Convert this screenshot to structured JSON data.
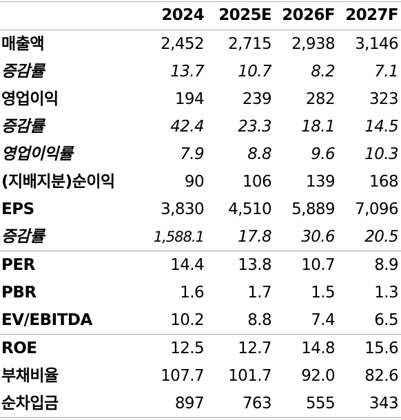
{
  "table": {
    "columns": [
      "2024",
      "2025E",
      "2026F",
      "2027F"
    ],
    "rows": [
      {
        "label": "매출액",
        "values": [
          "2,452",
          "2,715",
          "2,938",
          "3,146"
        ],
        "italic": false
      },
      {
        "label": "증감률",
        "values": [
          "13.7",
          "10.7",
          "8.2",
          "7.1"
        ],
        "italic": true
      },
      {
        "label": "영업이익",
        "values": [
          "194",
          "239",
          "282",
          "323"
        ],
        "italic": false
      },
      {
        "label": "증감률",
        "values": [
          "42.4",
          "23.3",
          "18.1",
          "14.5"
        ],
        "italic": true
      },
      {
        "label": "영업이익률",
        "values": [
          "7.9",
          "8.8",
          "9.6",
          "10.3"
        ],
        "italic": true
      },
      {
        "label": "(지배지분)순이익",
        "values": [
          "90",
          "106",
          "139",
          "168"
        ],
        "italic": false
      },
      {
        "label": "EPS",
        "values": [
          "3,830",
          "4,510",
          "5,889",
          "7,096"
        ],
        "italic": false
      },
      {
        "label": "증감률",
        "values": [
          "1,588.1",
          "17.8",
          "30.6",
          "20.5"
        ],
        "italic": true
      },
      {
        "label": "PER",
        "values": [
          "14.4",
          "13.8",
          "10.7",
          "8.9"
        ],
        "italic": false
      },
      {
        "label": "PBR",
        "values": [
          "1.6",
          "1.7",
          "1.5",
          "1.3"
        ],
        "italic": false
      },
      {
        "label": "EV/EBITDA",
        "values": [
          "10.2",
          "8.8",
          "7.4",
          "6.5"
        ],
        "italic": false
      },
      {
        "label": "ROE",
        "values": [
          "12.5",
          "12.7",
          "14.8",
          "15.6"
        ],
        "italic": false
      },
      {
        "label": "부채비율",
        "values": [
          "107.7",
          "101.7",
          "92.0",
          "82.6"
        ],
        "italic": false
      },
      {
        "label": "순차입금",
        "values": [
          "897",
          "763",
          "555",
          "343"
        ],
        "italic": false
      }
    ]
  },
  "colors": {
    "text": "#000000",
    "rule": "#a8a8a8",
    "background": "#ffffff"
  }
}
